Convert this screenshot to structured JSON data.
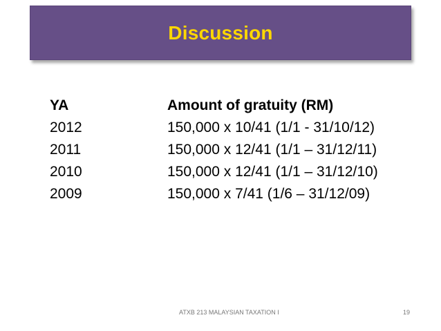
{
  "slide": {
    "title": "Discussion",
    "table": {
      "headers": [
        "YA",
        "Amount of gratuity (RM)"
      ],
      "rows": [
        [
          "2012",
          "150,000 x 10/41 (1/1 - 31/10/12)"
        ],
        [
          "2011",
          "150,000 x 12/41 (1/1 – 31/12/11)"
        ],
        [
          "2010",
          "150,000 x 12/41 (1/1 – 31/12/10)"
        ],
        [
          "2009",
          "150,000 x 7/41 (1/6 – 31/12/09)"
        ]
      ]
    },
    "footer": {
      "course": "ATXB 213 MALAYSIAN TAXATION I",
      "page_number": "19"
    },
    "colors": {
      "banner": "#664f87",
      "title_text": "#ffd700"
    }
  }
}
